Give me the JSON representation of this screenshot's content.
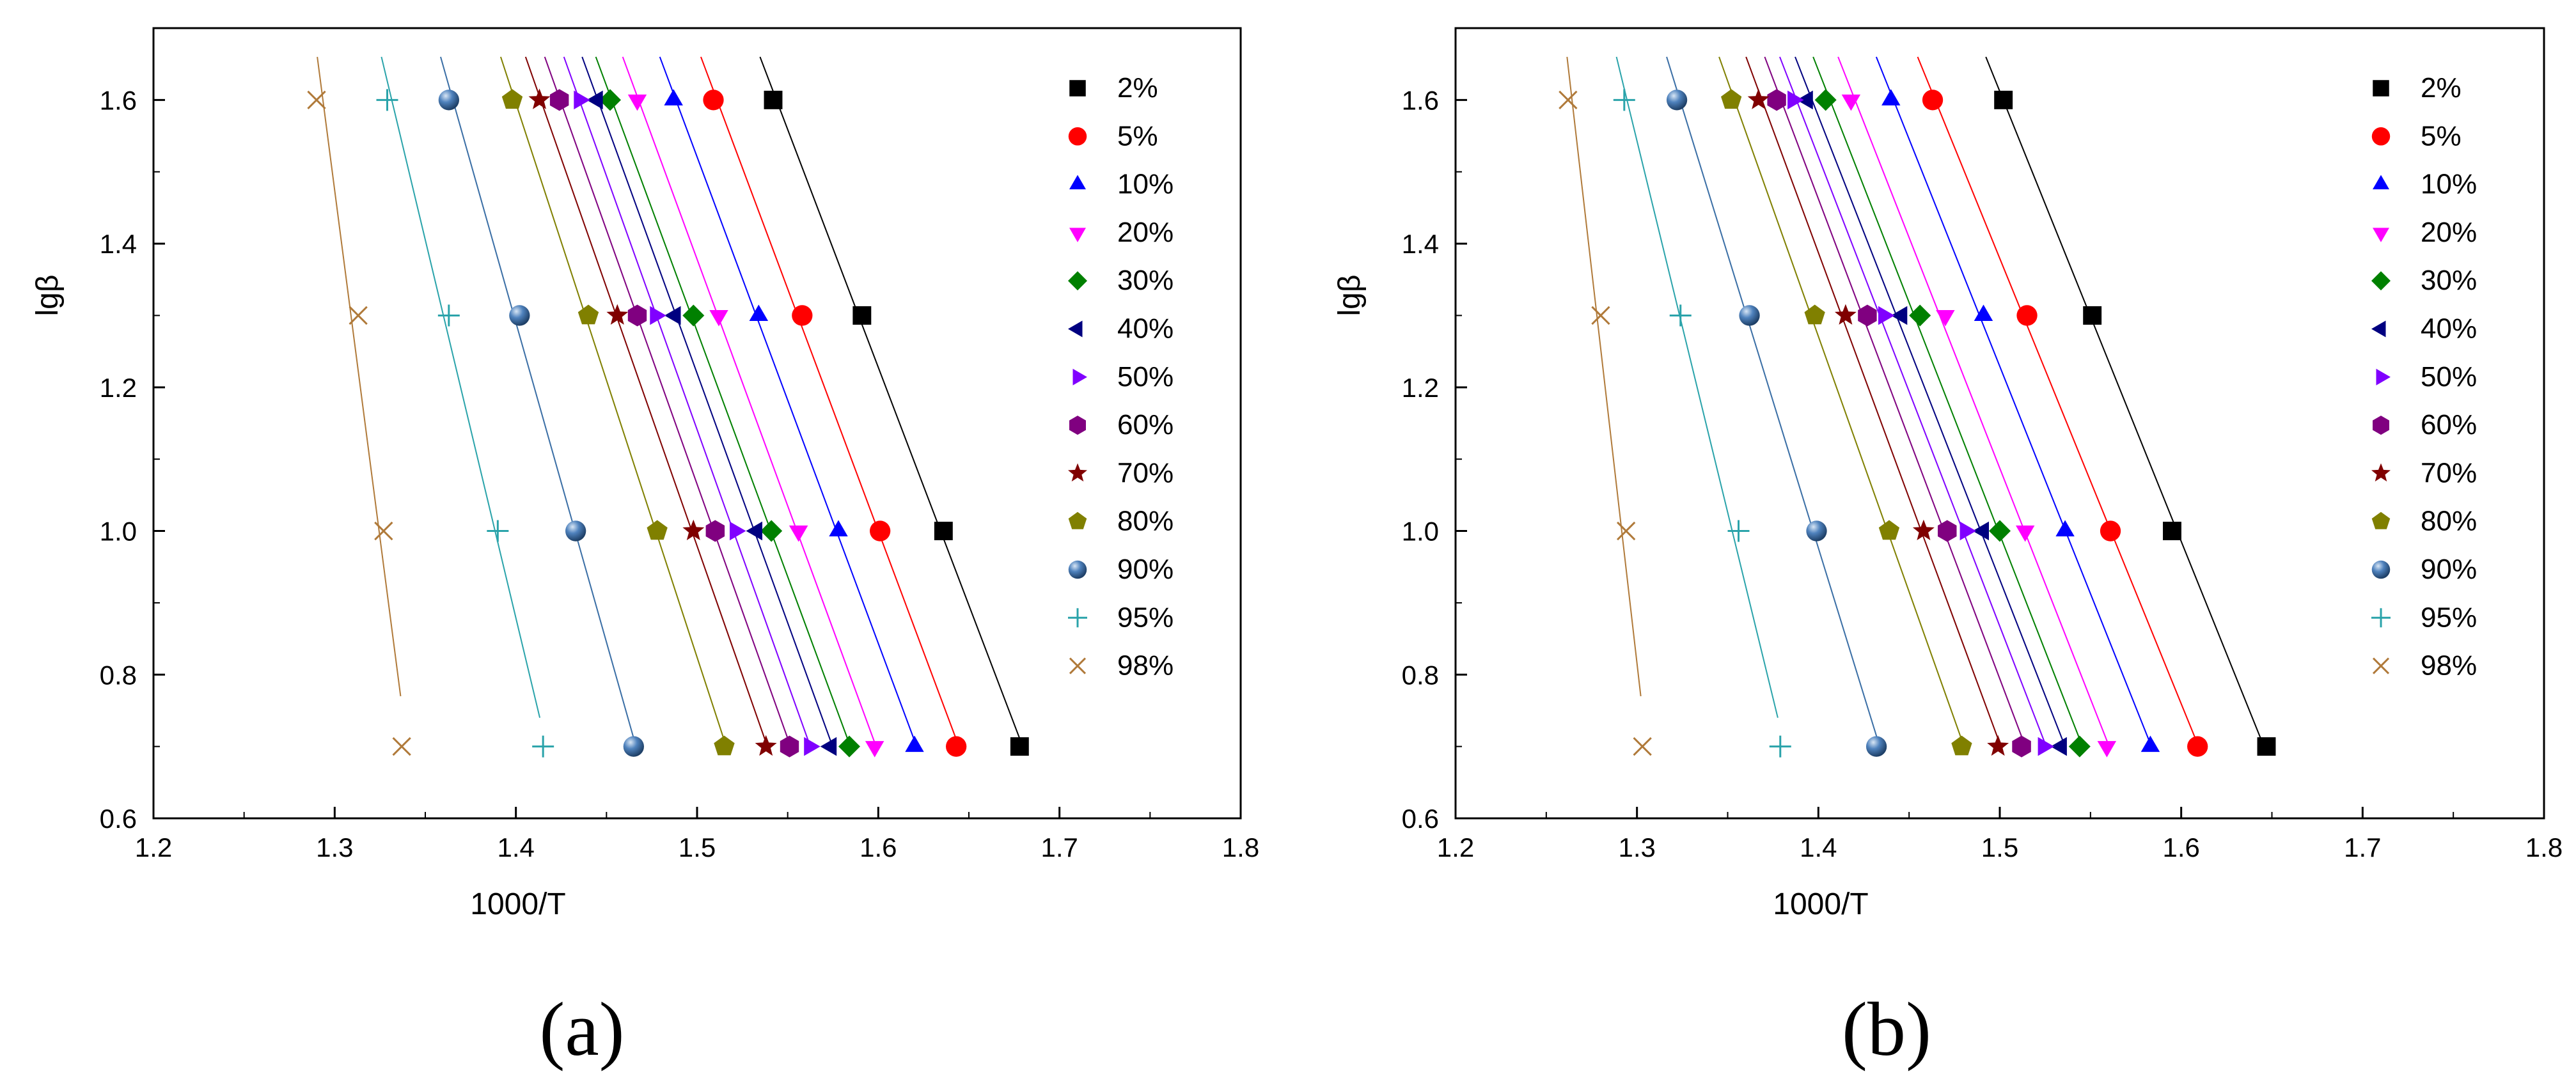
{
  "chart_data": [
    {
      "type": "scatter",
      "panel_label": "(a)",
      "xlabel": "1000/T",
      "ylabel": "lgβ",
      "xlim": [
        1.2,
        1.8
      ],
      "ylim": [
        0.6,
        1.7
      ],
      "x_ticks": [
        "1.2",
        "1.3",
        "1.4",
        "1.5",
        "1.6",
        "1.7",
        "1.8"
      ],
      "y_ticks": [
        "0.6",
        "0.8",
        "1.0",
        "1.2",
        "1.4",
        "1.6"
      ],
      "legend_position": "right",
      "y": [
        1.6,
        1.3,
        1.0,
        0.7
      ],
      "series": [
        {
          "name": "2%",
          "marker": "square",
          "color": "#000000",
          "x": [
            1.542,
            1.591,
            1.636,
            1.678
          ]
        },
        {
          "name": "5%",
          "marker": "circle",
          "color": "#ff0000",
          "x": [
            1.509,
            1.558,
            1.601,
            1.643
          ]
        },
        {
          "name": "10%",
          "marker": "triangle-up",
          "color": "#0000ff",
          "x": [
            1.487,
            1.534,
            1.578,
            1.62
          ]
        },
        {
          "name": "20%",
          "marker": "triangle-down",
          "color": "#ff00ff",
          "x": [
            1.467,
            1.512,
            1.556,
            1.598
          ]
        },
        {
          "name": "30%",
          "marker": "diamond",
          "color": "#008000",
          "x": [
            1.452,
            1.498,
            1.541,
            1.584
          ]
        },
        {
          "name": "40%",
          "marker": "triangle-left",
          "color": "#000080",
          "x": [
            1.445,
            1.488,
            1.533,
            1.574
          ]
        },
        {
          "name": "50%",
          "marker": "triangle-right",
          "color": "#8000ff",
          "x": [
            1.435,
            1.477,
            1.521,
            1.562
          ]
        },
        {
          "name": "60%",
          "marker": "hexagon",
          "color": "#800080",
          "x": [
            1.424,
            1.467,
            1.51,
            1.551
          ]
        },
        {
          "name": "70%",
          "marker": "star",
          "color": "#800000",
          "x": [
            1.413,
            1.456,
            1.498,
            1.538
          ]
        },
        {
          "name": "80%",
          "marker": "pentagon",
          "color": "#808000",
          "x": [
            1.398,
            1.44,
            1.478,
            1.515
          ]
        },
        {
          "name": "90%",
          "marker": "ball",
          "color": "#3a6ea5",
          "x": [
            1.363,
            1.402,
            1.433,
            1.465
          ]
        },
        {
          "name": "95%",
          "marker": "plus",
          "color": "#2aa3aa",
          "x": [
            1.329,
            1.363,
            1.39,
            1.415
          ]
        },
        {
          "name": "98%",
          "marker": "cross",
          "color": "#b07a3a",
          "x": [
            1.29,
            1.313,
            1.327,
            1.337
          ]
        }
      ]
    },
    {
      "type": "scatter",
      "panel_label": "(b)",
      "xlabel": "1000/T",
      "ylabel": "lgβ",
      "xlim": [
        1.2,
        1.8
      ],
      "ylim": [
        0.6,
        1.7
      ],
      "x_ticks": [
        "1.2",
        "1.3",
        "1.4",
        "1.5",
        "1.6",
        "1.7",
        "1.8"
      ],
      "y_ticks": [
        "0.6",
        "0.8",
        "1.0",
        "1.2",
        "1.4",
        "1.6"
      ],
      "legend_position": "right",
      "y": [
        1.6,
        1.3,
        1.0,
        0.7
      ],
      "series": [
        {
          "name": "2%",
          "marker": "square",
          "color": "#000000",
          "x": [
            1.502,
            1.551,
            1.595,
            1.647
          ]
        },
        {
          "name": "5%",
          "marker": "circle",
          "color": "#ff0000",
          "x": [
            1.463,
            1.515,
            1.561,
            1.609
          ]
        },
        {
          "name": "10%",
          "marker": "triangle-up",
          "color": "#0000ff",
          "x": [
            1.44,
            1.491,
            1.536,
            1.583
          ]
        },
        {
          "name": "20%",
          "marker": "triangle-down",
          "color": "#ff00ff",
          "x": [
            1.418,
            1.47,
            1.514,
            1.559
          ]
        },
        {
          "name": "30%",
          "marker": "diamond",
          "color": "#008000",
          "x": [
            1.404,
            1.456,
            1.5,
            1.544
          ]
        },
        {
          "name": "40%",
          "marker": "triangle-left",
          "color": "#000080",
          "x": [
            1.394,
            1.446,
            1.491,
            1.534
          ]
        },
        {
          "name": "50%",
          "marker": "triangle-right",
          "color": "#8000ff",
          "x": [
            1.386,
            1.436,
            1.481,
            1.524
          ]
        },
        {
          "name": "60%",
          "marker": "hexagon",
          "color": "#800080",
          "x": [
            1.377,
            1.427,
            1.471,
            1.512
          ]
        },
        {
          "name": "70%",
          "marker": "star",
          "color": "#800000",
          "x": [
            1.367,
            1.415,
            1.458,
            1.499
          ]
        },
        {
          "name": "80%",
          "marker": "pentagon",
          "color": "#808000",
          "x": [
            1.352,
            1.398,
            1.439,
            1.479
          ]
        },
        {
          "name": "90%",
          "marker": "ball",
          "color": "#3a6ea5",
          "x": [
            1.322,
            1.362,
            1.399,
            1.432
          ]
        },
        {
          "name": "95%",
          "marker": "plus",
          "color": "#2aa3aa",
          "x": [
            1.293,
            1.324,
            1.356,
            1.379
          ]
        },
        {
          "name": "98%",
          "marker": "cross",
          "color": "#b07a3a",
          "x": [
            1.262,
            1.28,
            1.294,
            1.303
          ]
        }
      ]
    }
  ]
}
